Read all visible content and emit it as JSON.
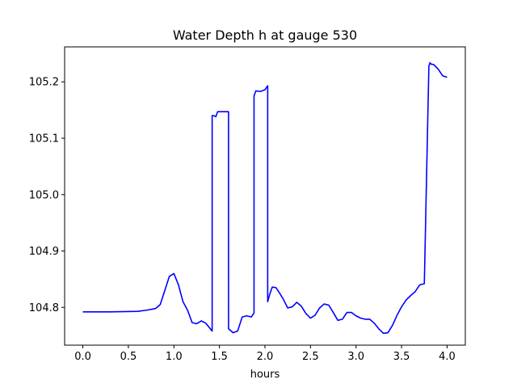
{
  "chart_data": {
    "type": "line",
    "title": "Water Depth h at gauge 530",
    "xlabel": "hours",
    "ylabel": "",
    "xlim": [
      -0.2,
      4.2
    ],
    "ylim": [
      104.733,
      105.262
    ],
    "grid": false,
    "legend": "none",
    "x_ticks": [
      0.0,
      0.5,
      1.0,
      1.5,
      2.0,
      2.5,
      3.0,
      3.5,
      4.0
    ],
    "x_tick_labels": [
      "0.0",
      "0.5",
      "1.0",
      "1.5",
      "2.0",
      "2.5",
      "3.0",
      "3.5",
      "4.0"
    ],
    "y_ticks": [
      104.8,
      104.9,
      105.0,
      105.1,
      105.2
    ],
    "y_tick_labels": [
      "104.8",
      "104.9",
      "105.0",
      "105.1",
      "105.2"
    ],
    "series": [
      {
        "color": "#0000ff",
        "x": [
          0.0,
          0.3,
          0.6,
          0.7,
          0.8,
          0.85,
          0.9,
          0.95,
          1.0,
          1.05,
          1.1,
          1.15,
          1.2,
          1.25,
          1.3,
          1.35,
          1.42,
          1.42,
          1.44,
          1.46,
          1.48,
          1.5,
          1.6,
          1.6,
          1.65,
          1.7,
          1.75,
          1.8,
          1.85,
          1.88,
          1.88,
          1.9,
          1.95,
          2.0,
          2.03,
          2.03,
          2.05,
          2.08,
          2.12,
          2.15,
          2.2,
          2.25,
          2.3,
          2.35,
          2.4,
          2.45,
          2.5,
          2.55,
          2.6,
          2.65,
          2.7,
          2.75,
          2.8,
          2.85,
          2.9,
          2.95,
          3.0,
          3.05,
          3.1,
          3.15,
          3.2,
          3.25,
          3.3,
          3.35,
          3.4,
          3.45,
          3.5,
          3.55,
          3.6,
          3.65,
          3.7,
          3.75,
          3.8,
          3.81,
          3.81,
          3.83,
          3.85,
          3.9,
          3.95,
          4.0
        ],
        "y": [
          104.792,
          104.792,
          104.793,
          104.795,
          104.798,
          104.805,
          104.83,
          104.855,
          104.86,
          104.84,
          104.81,
          104.795,
          104.773,
          104.771,
          104.776,
          104.772,
          104.758,
          105.14,
          105.14,
          105.138,
          105.147,
          105.147,
          105.147,
          104.762,
          104.755,
          104.758,
          104.783,
          104.785,
          104.783,
          104.79,
          105.175,
          105.184,
          105.183,
          105.186,
          105.193,
          104.81,
          104.822,
          104.836,
          104.835,
          104.828,
          104.815,
          104.799,
          104.801,
          104.809,
          104.802,
          104.789,
          104.781,
          104.786,
          104.799,
          104.806,
          104.804,
          104.791,
          104.777,
          104.779,
          104.791,
          104.791,
          104.785,
          104.781,
          104.779,
          104.779,
          104.772,
          104.762,
          104.754,
          104.755,
          104.768,
          104.786,
          104.801,
          104.813,
          104.821,
          104.828,
          104.84,
          104.842,
          105.228,
          105.232,
          105.234,
          105.231,
          105.231,
          105.223,
          105.211,
          105.208
        ]
      }
    ]
  }
}
